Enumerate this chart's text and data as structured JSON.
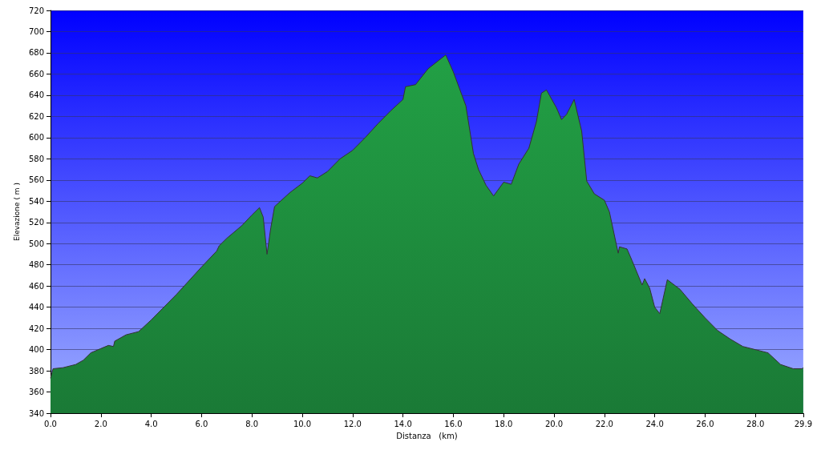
{
  "chart_data": {
    "type": "area",
    "xlabel": "Distanza   (km)",
    "ylabel": "Elevazione ( m )",
    "color": "#22a045",
    "grid": "y",
    "xlim": [
      0,
      29.9
    ],
    "ylim": [
      340,
      720
    ],
    "xticks": [
      {
        "value": 0,
        "label": "0.0"
      },
      {
        "value": 2,
        "label": "2.0"
      },
      {
        "value": 4,
        "label": "4.0"
      },
      {
        "value": 6,
        "label": "6.0"
      },
      {
        "value": 8,
        "label": "8.0"
      },
      {
        "value": 10,
        "label": "10.0"
      },
      {
        "value": 12,
        "label": "12.0"
      },
      {
        "value": 14,
        "label": "14.0"
      },
      {
        "value": 16,
        "label": "16.0"
      },
      {
        "value": 18,
        "label": "18.0"
      },
      {
        "value": 20,
        "label": "20.0"
      },
      {
        "value": 22,
        "label": "22.0"
      },
      {
        "value": 24,
        "label": "24.0"
      },
      {
        "value": 26,
        "label": "26.0"
      },
      {
        "value": 28,
        "label": "28.0"
      },
      {
        "value": 29.9,
        "label": "29.9"
      }
    ],
    "yticks": [
      340,
      360,
      380,
      400,
      420,
      440,
      460,
      480,
      500,
      520,
      540,
      560,
      580,
      600,
      620,
      640,
      660,
      680,
      700,
      720
    ],
    "x": [
      0,
      0.1,
      0.5,
      1.0,
      1.3,
      1.6,
      2.0,
      2.3,
      2.5,
      2.55,
      3.0,
      3.5,
      4.0,
      5.0,
      6.0,
      6.6,
      6.7,
      7.0,
      7.6,
      8.0,
      8.3,
      8.45,
      8.6,
      8.75,
      8.9,
      9.5,
      10.0,
      10.3,
      10.6,
      11.0,
      11.5,
      12.0,
      12.5,
      13.0,
      13.5,
      14.0,
      14.1,
      14.5,
      15.0,
      15.7,
      16.0,
      16.5,
      16.8,
      17.0,
      17.3,
      17.6,
      18.0,
      18.3,
      18.6,
      19.0,
      19.3,
      19.5,
      19.7,
      20.1,
      20.3,
      20.5,
      20.8,
      21.1,
      21.3,
      21.6,
      22.0,
      22.2,
      22.55,
      22.6,
      22.9,
      23.1,
      23.5,
      23.6,
      23.8,
      24.0,
      24.2,
      24.5,
      25.0,
      25.5,
      26.0,
      26.5,
      27.0,
      27.5,
      28.0,
      28.5,
      29.0,
      29.5,
      29.85,
      29.9
    ],
    "values": [
      373,
      382,
      383,
      386,
      390,
      397,
      401,
      404,
      403,
      408,
      414,
      417,
      428,
      452,
      478,
      493,
      498,
      505,
      517,
      527,
      534,
      525,
      490,
      515,
      535,
      548,
      557,
      564,
      562,
      568,
      580,
      588,
      600,
      613,
      625,
      636,
      648,
      650,
      665,
      678,
      662,
      630,
      585,
      570,
      555,
      545,
      558,
      556,
      575,
      590,
      615,
      642,
      645,
      628,
      617,
      622,
      636,
      606,
      559,
      547,
      541,
      530,
      491,
      497,
      495,
      484,
      461,
      467,
      458,
      440,
      434,
      466,
      457,
      443,
      430,
      418,
      410,
      403,
      400,
      397,
      386,
      382,
      382,
      383
    ]
  }
}
